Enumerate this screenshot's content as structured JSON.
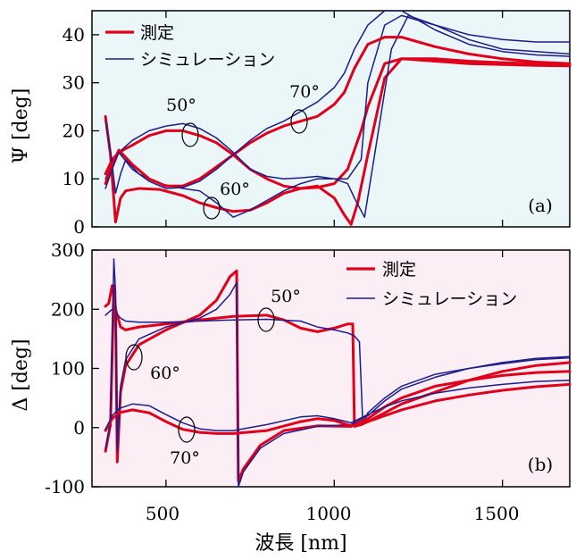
{
  "figure": {
    "xlabel": "波長 [nm]",
    "x_ticks": [
      "500",
      "1000",
      "1500"
    ]
  },
  "chart_data": [
    {
      "type": "line",
      "panel_label": "(a)",
      "xlabel": "",
      "ylabel": "Ψ [deg]",
      "xlim": [
        280,
        1700
      ],
      "ylim": [
        0,
        45
      ],
      "y_ticks": [
        0,
        10,
        20,
        30,
        40
      ],
      "y_tick_labels": [
        "0",
        "10",
        "20",
        "30",
        "40"
      ],
      "background": "#ebf6f8",
      "legend": {
        "position": "top-left",
        "entries": [
          "測定",
          "シミュレーション"
        ]
      },
      "annotations": [
        "50°",
        "60°",
        "70°"
      ],
      "series": [
        {
          "name": "測定",
          "angle": "50°",
          "color": "#e0001b",
          "x": [
            320,
            340,
            360,
            400,
            450,
            500,
            550,
            600,
            650,
            700,
            750,
            800,
            850,
            900,
            950,
            1000,
            1040,
            1080,
            1100,
            1150,
            1200,
            1300,
            1400,
            1500,
            1600,
            1700
          ],
          "y": [
            11,
            14,
            15.5,
            17,
            19,
            20,
            20,
            19,
            17.5,
            15,
            12,
            10,
            8.5,
            8,
            8.2,
            9,
            12,
            20,
            25,
            34,
            35,
            34.5,
            34,
            33.8,
            33.6,
            33.5
          ]
        },
        {
          "name": "シミュレーション",
          "angle": "50°",
          "color": "#1c1c8c",
          "x": [
            320,
            340,
            360,
            400,
            450,
            500,
            550,
            600,
            650,
            700,
            750,
            800,
            850,
            900,
            950,
            1000,
            1040,
            1080,
            1100,
            1150,
            1200,
            1300,
            1400,
            1500,
            1600,
            1700
          ],
          "y": [
            10,
            13,
            15.5,
            18,
            20,
            21,
            21.5,
            20.5,
            18.5,
            15.5,
            12,
            10.5,
            10,
            10.2,
            10.5,
            10,
            10,
            14,
            30,
            42,
            44,
            42,
            40,
            39,
            38.5,
            38.5
          ]
        },
        {
          "name": "測定",
          "angle": "60°",
          "color": "#e0001b",
          "x": [
            320,
            335,
            350,
            365,
            380,
            420,
            480,
            550,
            600,
            650,
            700,
            750,
            800,
            850,
            900,
            950,
            1000,
            1030,
            1050,
            1070,
            1100,
            1150,
            1200,
            1300,
            1400,
            1500,
            1600,
            1700
          ],
          "y": [
            23,
            15,
            1,
            6,
            7.5,
            8,
            7.8,
            6.5,
            5,
            4,
            3.2,
            3.5,
            5,
            7,
            8,
            8.5,
            6,
            2.5,
            0.5,
            5,
            15,
            31,
            35,
            35,
            34.5,
            34.2,
            34.0,
            33.8
          ]
        },
        {
          "name": "シミュレーション",
          "angle": "60°",
          "color": "#1c1c8c",
          "x": [
            320,
            335,
            350,
            365,
            380,
            420,
            480,
            550,
            600,
            650,
            700,
            750,
            800,
            850,
            900,
            950,
            1000,
            1040,
            1060,
            1090,
            1120,
            1170,
            1220,
            1300,
            1400,
            1500,
            1600,
            1700
          ],
          "y": [
            22,
            16,
            7,
            11,
            14,
            11,
            9,
            8,
            7.5,
            5,
            2,
            3.5,
            5.5,
            7.5,
            9,
            10,
            10,
            9,
            6,
            2,
            15,
            37,
            44,
            42,
            39,
            37,
            36.5,
            36
          ]
        },
        {
          "name": "測定",
          "angle": "70°",
          "color": "#e0001b",
          "x": [
            320,
            340,
            360,
            400,
            450,
            500,
            550,
            600,
            650,
            700,
            750,
            800,
            850,
            900,
            950,
            1000,
            1030,
            1060,
            1100,
            1150,
            1200,
            1250,
            1300,
            1400,
            1500,
            1600,
            1700
          ],
          "y": [
            9,
            13,
            16,
            13,
            10,
            8.5,
            8.5,
            10,
            12.5,
            15,
            17.5,
            19.5,
            21,
            22,
            23,
            25.5,
            28,
            33,
            38,
            39.5,
            39.5,
            38.5,
            37.5,
            36,
            35,
            34.3,
            34
          ]
        },
        {
          "name": "シミュレーション",
          "angle": "70°",
          "color": "#1c1c8c",
          "x": [
            320,
            340,
            360,
            400,
            450,
            500,
            550,
            600,
            650,
            700,
            750,
            800,
            850,
            900,
            950,
            1000,
            1030,
            1060,
            1100,
            1150,
            1200,
            1250,
            1300,
            1400,
            1500,
            1600,
            1700
          ],
          "y": [
            8,
            12,
            15.5,
            12,
            9.5,
            8,
            8.2,
            9.5,
            12,
            15,
            18,
            20.5,
            22,
            24,
            26,
            29,
            32,
            37,
            42,
            45,
            45,
            43,
            41,
            38,
            36.5,
            35.8,
            35.5
          ]
        }
      ]
    },
    {
      "type": "line",
      "panel_label": "(b)",
      "xlabel": "波長 [nm]",
      "ylabel": "Δ [deg]",
      "xlim": [
        280,
        1700
      ],
      "ylim": [
        -100,
        300
      ],
      "y_ticks": [
        -100,
        0,
        100,
        200,
        300
      ],
      "y_tick_labels": [
        "-100",
        "0",
        "100",
        "200",
        "300"
      ],
      "background": "#fceef5",
      "legend": {
        "position": "top-right",
        "entries": [
          "測定",
          "シミュレーション"
        ]
      },
      "annotations": [
        "50°",
        "60°",
        "70°"
      ],
      "series": [
        {
          "name": "測定",
          "angle": "50°",
          "color": "#e0001b",
          "x": [
            320,
            330,
            340,
            350,
            365,
            380,
            420,
            500,
            600,
            700,
            800,
            850,
            900,
            950,
            1000,
            1040,
            1055,
            1060,
            1080,
            1100,
            1150,
            1200,
            1300,
            1400,
            1500,
            1600,
            1700
          ],
          "y": [
            205,
            210,
            240,
            200,
            170,
            165,
            170,
            175,
            182,
            188,
            190,
            182,
            168,
            162,
            168,
            175,
            175,
            2,
            5,
            10,
            25,
            40,
            60,
            80,
            95,
            105,
            110
          ]
        },
        {
          "name": "シミュレーション",
          "angle": "50°",
          "color": "#1c1c8c",
          "x": [
            320,
            330,
            340,
            350,
            365,
            380,
            420,
            500,
            600,
            700,
            800,
            900,
            950,
            1000,
            1040,
            1060,
            1075,
            1085,
            1100,
            1150,
            1200,
            1300,
            1400,
            1500,
            1600,
            1700
          ],
          "y": [
            190,
            195,
            200,
            195,
            185,
            180,
            178,
            178,
            180,
            182,
            183,
            180,
            170,
            165,
            160,
            155,
            145,
            5,
            25,
            50,
            70,
            90,
            100,
            108,
            115,
            118
          ]
        },
        {
          "name": "測定",
          "angle": "60°",
          "color": "#e0001b",
          "x": [
            320,
            335,
            345,
            350,
            355,
            365,
            380,
            420,
            500,
            600,
            650,
            690,
            710,
            715,
            730,
            780,
            850,
            950,
            1050,
            1100,
            1150,
            1200,
            1300,
            1400,
            1500,
            1600,
            1700
          ],
          "y": [
            -40,
            5,
            240,
            200,
            -58,
            60,
            105,
            140,
            165,
            190,
            215,
            255,
            265,
            -90,
            -70,
            -30,
            -5,
            3,
            2,
            15,
            35,
            50,
            70,
            80,
            88,
            93,
            95
          ]
        },
        {
          "name": "シミュレーション",
          "angle": "60°",
          "color": "#1c1c8c",
          "x": [
            320,
            335,
            345,
            350,
            355,
            365,
            380,
            420,
            500,
            600,
            650,
            690,
            710,
            715,
            730,
            780,
            850,
            950,
            1050,
            1100,
            1150,
            1200,
            1300,
            1400,
            1500,
            1600,
            1700
          ],
          "y": [
            -35,
            10,
            285,
            230,
            -40,
            70,
            115,
            150,
            170,
            185,
            200,
            225,
            245,
            -100,
            -75,
            -35,
            -10,
            2,
            5,
            20,
            45,
            65,
            85,
            100,
            110,
            117,
            120
          ]
        },
        {
          "name": "測定",
          "angle": "70°",
          "color": "#e0001b",
          "x": [
            320,
            340,
            360,
            400,
            450,
            500,
            550,
            600,
            650,
            700,
            800,
            900,
            950,
            1000,
            1050,
            1100,
            1150,
            1200,
            1300,
            1400,
            1500,
            1600,
            1700
          ],
          "y": [
            -5,
            15,
            25,
            30,
            25,
            10,
            -3,
            -8,
            -10,
            -10,
            -5,
            10,
            15,
            12,
            3,
            10,
            20,
            30,
            45,
            55,
            63,
            69,
            73
          ]
        },
        {
          "name": "シミュレーション",
          "angle": "70°",
          "color": "#1c1c8c",
          "x": [
            320,
            340,
            360,
            400,
            450,
            500,
            550,
            600,
            650,
            700,
            800,
            900,
            950,
            1000,
            1050,
            1100,
            1150,
            1200,
            1300,
            1400,
            1500,
            1600,
            1700
          ],
          "y": [
            -3,
            20,
            32,
            40,
            37,
            22,
            8,
            -2,
            -5,
            -5,
            5,
            18,
            20,
            15,
            8,
            22,
            35,
            45,
            58,
            67,
            73,
            78,
            80
          ]
        }
      ]
    }
  ]
}
